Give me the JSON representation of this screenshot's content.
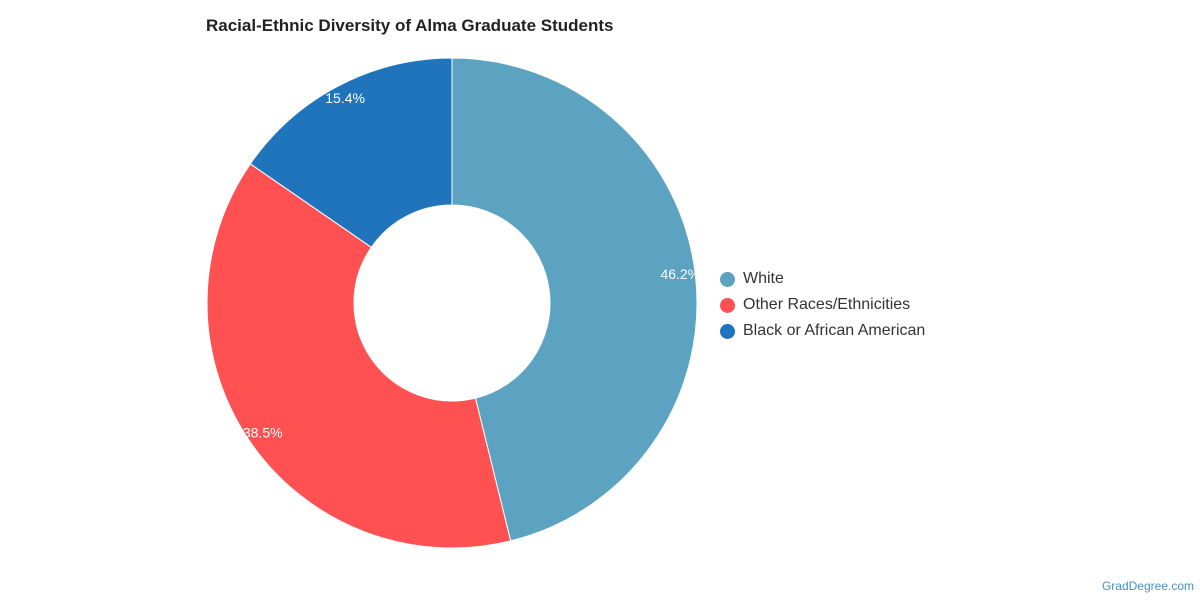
{
  "chart_data": {
    "type": "pie",
    "title": "Racial-Ethnic Diversity of Alma Graduate Students",
    "categories": [
      "White",
      "Other Races/Ethnicities",
      "Black or African American"
    ],
    "values": [
      46.2,
      38.5,
      15.4
    ],
    "value_labels": [
      "46.2%",
      "38.5%",
      "15.4%"
    ],
    "colors": [
      "#5ba3c0",
      "#ff5151",
      "#1f74bc"
    ],
    "donut": true,
    "legend_placement": "right"
  },
  "credit": "GradDegree.com"
}
